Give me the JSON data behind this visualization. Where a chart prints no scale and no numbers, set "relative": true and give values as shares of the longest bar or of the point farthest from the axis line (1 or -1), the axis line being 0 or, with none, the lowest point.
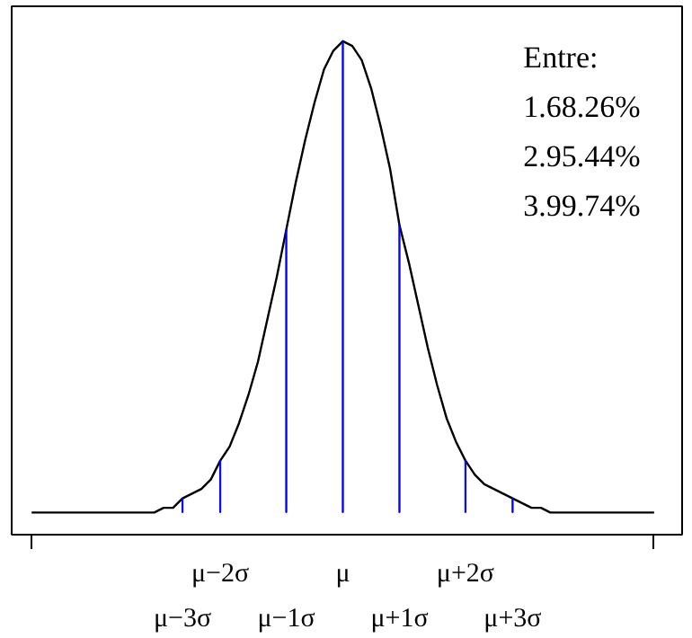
{
  "chart_data": {
    "type": "line",
    "relative": true,
    "categories": [
      null,
      null,
      null,
      null,
      null,
      null,
      null,
      null,
      null,
      null,
      null,
      null,
      null,
      null,
      null,
      null,
      "μ−3σ",
      null,
      null,
      null,
      "μ−2σ",
      null,
      null,
      null,
      null,
      null,
      null,
      "μ−1σ",
      null,
      null,
      null,
      null,
      null,
      "μ",
      null,
      null,
      null,
      null,
      null,
      "μ+1σ",
      null,
      null,
      null,
      null,
      null,
      null,
      "μ+2σ",
      null,
      null,
      null,
      null,
      "μ+3σ",
      null,
      null,
      null,
      null,
      null,
      null,
      null,
      null,
      null,
      null,
      null,
      null,
      null,
      null,
      null
    ],
    "series": [
      {
        "color": "#000000",
        "values": [
          0,
          0,
          0,
          0,
          0,
          0,
          0,
          0,
          0,
          0,
          0,
          0,
          0,
          0,
          0.01,
          0.01,
          0.03,
          0.04,
          0.05,
          0.07,
          0.11,
          0.14,
          0.19,
          0.25,
          0.32,
          0.41,
          0.5,
          0.6,
          0.7,
          0.79,
          0.87,
          0.94,
          0.98,
          1,
          0.99,
          0.96,
          0.9,
          0.82,
          0.73,
          0.61,
          0.53,
          0.44,
          0.35,
          0.27,
          0.2,
          0.15,
          0.11,
          0.08,
          0.06,
          0.05,
          0.04,
          0.03,
          0.02,
          0.01,
          0.01,
          0,
          0,
          0,
          0,
          0,
          0,
          0,
          0,
          0,
          0,
          0,
          0
        ]
      },
      {
        "type": "bar",
        "color": "#0000ff",
        "values": [
          null,
          null,
          null,
          null,
          null,
          null,
          null,
          null,
          null,
          null,
          null,
          null,
          null,
          null,
          null,
          null,
          0.03,
          null,
          null,
          null,
          0.11,
          null,
          null,
          null,
          null,
          null,
          null,
          0.6,
          null,
          null,
          null,
          null,
          null,
          1,
          null,
          null,
          null,
          null,
          null,
          0.61,
          null,
          null,
          null,
          null,
          null,
          null,
          0.11,
          null,
          null,
          null,
          null,
          0.03,
          null,
          null,
          null,
          null,
          null,
          null,
          null,
          null,
          null,
          null,
          null,
          null,
          null,
          null,
          null
        ]
      }
    ],
    "annotations": [
      "Entre:",
      "1.68.26%",
      "2.95.44%",
      "3.99.74%"
    ]
  }
}
